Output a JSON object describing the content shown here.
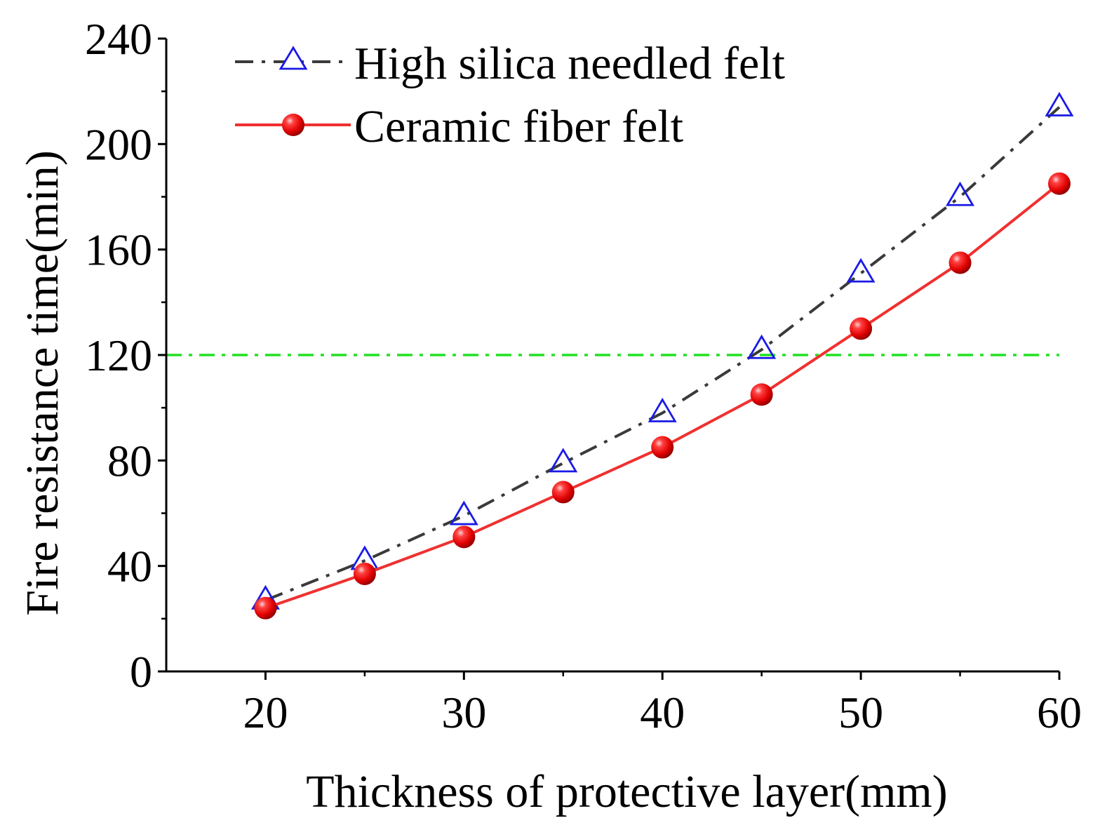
{
  "chart_data": {
    "type": "line",
    "title": "",
    "xlabel": "Thickness of protective layer(mm)",
    "ylabel": "Fire resistance time(min)",
    "xlim": [
      15,
      60
    ],
    "ylim": [
      0,
      240
    ],
    "x_ticks": [
      20,
      30,
      40,
      50,
      60
    ],
    "y_ticks": [
      0,
      40,
      80,
      120,
      160,
      200,
      240
    ],
    "x_minor_ticks": [
      25,
      35,
      45,
      55
    ],
    "y_minor_ticks": [
      20,
      60,
      100,
      140,
      180,
      220
    ],
    "grid": false,
    "legend_position": "top-left",
    "x": [
      20,
      25,
      30,
      35,
      40,
      45,
      50,
      55,
      60
    ],
    "series": [
      {
        "name": "High silica needled felt",
        "values": [
          27,
          42,
          59,
          79,
          98,
          122,
          151,
          180,
          214
        ],
        "line_color": "#3a3a3a",
        "line_style": "dash-dot",
        "marker": "open-triangle",
        "marker_color": "#1a1ae6"
      },
      {
        "name": "Ceramic fiber felt",
        "values": [
          24,
          37,
          51,
          68,
          85,
          105,
          130,
          155,
          185
        ],
        "line_color": "#f03030",
        "line_style": "solid",
        "marker": "filled-circle",
        "marker_color": "#e81010"
      }
    ],
    "reference_line": {
      "y": 120,
      "color": "#22e022",
      "line_style": "dash-dot"
    }
  }
}
